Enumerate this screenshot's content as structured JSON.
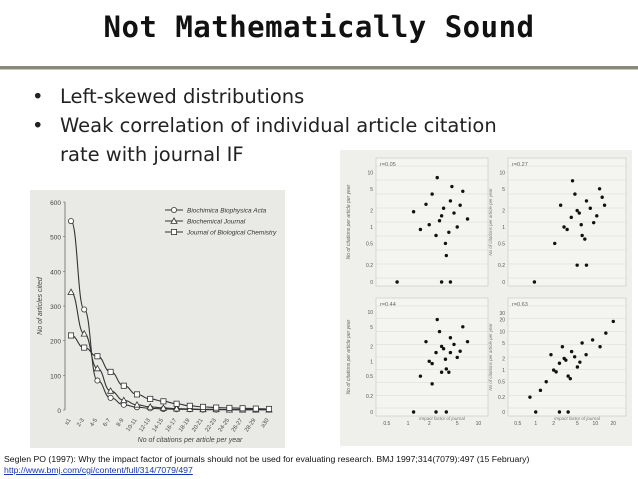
{
  "slide": {
    "title": "Not Mathematically Sound",
    "bullets": [
      "Left-skewed distributions",
      "Weak correlation of individual article citation rate with journal IF"
    ],
    "bullet_lines": [
      "Left-skewed distributions",
      "Weak correlation of individual article citation",
      "rate with journal IF"
    ],
    "citation": "Seglen PO (1997): Why the impact factor of journals should not be used for evaluating research. BMJ 1997;314(7079):497 (15 February)",
    "link": "http://www.bmj.com/cgi/content/full/314/7079/497"
  },
  "chart_data": [
    {
      "type": "line",
      "ylabel": "No of articles cited",
      "xlabel": "No of citations per article per year",
      "categories": [
        "≤1",
        "2-3",
        "4-5",
        "6-7",
        "8-9",
        "10-11",
        "12-13",
        "14-15",
        "16-17",
        "18-19",
        "20-21",
        "22-23",
        "24-25",
        "26-27",
        "28-29",
        "≥30"
      ],
      "yticks": [
        0,
        100,
        200,
        300,
        400,
        500,
        600
      ],
      "ylim": [
        0,
        600
      ],
      "legend_position": "top-right",
      "series": [
        {
          "name": "Biochimica Biophysica Acta",
          "marker": "circle",
          "values": [
            545,
            290,
            85,
            35,
            15,
            8,
            5,
            3,
            2,
            2,
            1,
            1,
            1,
            1,
            1,
            1
          ]
        },
        {
          "name": "Biochemical Journal",
          "marker": "triangle",
          "values": [
            340,
            220,
            120,
            55,
            28,
            15,
            9,
            6,
            4,
            3,
            2,
            2,
            1,
            1,
            1,
            1
          ]
        },
        {
          "name": "Journal of Biological Chemistry",
          "marker": "square",
          "values": [
            215,
            180,
            155,
            110,
            70,
            45,
            32,
            25,
            18,
            12,
            9,
            7,
            6,
            5,
            4,
            3
          ]
        }
      ]
    },
    {
      "type": "scatter",
      "scale": "log",
      "ylabel": "No of citations per article per year",
      "panels": [
        {
          "label": "r=0.05",
          "yticks": [
            "10",
            "5",
            "2",
            "1",
            "0.5",
            "0.2",
            "0"
          ],
          "points": [
            [
              0.7,
              0
            ],
            [
              1.5,
              0.9
            ],
            [
              2,
              1.1
            ],
            [
              2.5,
              0.7
            ],
            [
              3,
              1.6
            ],
            [
              3.5,
              0.3
            ],
            [
              4,
              3
            ],
            [
              5,
              1
            ],
            [
              1.2,
              1.9
            ],
            [
              1.8,
              2.6
            ],
            [
              2.2,
              4
            ],
            [
              2.8,
              1.3
            ],
            [
              3.2,
              2.2
            ],
            [
              3.8,
              0.8
            ],
            [
              4.5,
              1.8
            ],
            [
              5.5,
              2.5
            ],
            [
              6,
              4.5
            ],
            [
              7,
              1.4
            ],
            [
              3,
              0
            ],
            [
              4,
              0
            ],
            [
              2.6,
              8
            ],
            [
              3.4,
              0.5
            ],
            [
              4.2,
              5.5
            ]
          ]
        },
        {
          "label": "r=0.27",
          "yticks": [
            "10",
            "5",
            "2",
            "1",
            "0.5",
            "0.2",
            "0"
          ],
          "points": [
            [
              0.8,
              0
            ],
            [
              1.5,
              0.5
            ],
            [
              2,
              1
            ],
            [
              2.5,
              1.5
            ],
            [
              3,
              2
            ],
            [
              3.5,
              0.7
            ],
            [
              4,
              3
            ],
            [
              5,
              1.2
            ],
            [
              1.8,
              2.5
            ],
            [
              2.2,
              0.9
            ],
            [
              2.8,
              4
            ],
            [
              3.2,
              1.8
            ],
            [
              3.8,
              0.6
            ],
            [
              4.5,
              2.2
            ],
            [
              5.5,
              1.6
            ],
            [
              6,
              5
            ],
            [
              7,
              2.5
            ],
            [
              3,
              0.2
            ],
            [
              4,
              0.2
            ],
            [
              2.6,
              7
            ],
            [
              3.4,
              1.1
            ],
            [
              6.5,
              3.5
            ]
          ]
        },
        {
          "label": "r=0.44",
          "yticks": [
            "10",
            "5",
            "2",
            "1",
            "0.5",
            "0.2",
            "0"
          ],
          "points": [
            [
              1.2,
              0
            ],
            [
              1.5,
              0.5
            ],
            [
              2,
              1
            ],
            [
              2.5,
              1.5
            ],
            [
              3,
              2
            ],
            [
              3.5,
              0.7
            ],
            [
              4,
              3
            ],
            [
              5,
              1.2
            ],
            [
              1.8,
              2.5
            ],
            [
              2.2,
              0.9
            ],
            [
              2.8,
              4
            ],
            [
              3.2,
              1.8
            ],
            [
              3.8,
              0.6
            ],
            [
              4.5,
              2.2
            ],
            [
              5.5,
              1.6
            ],
            [
              6,
              5
            ],
            [
              7,
              2.5
            ],
            [
              2.5,
              0
            ],
            [
              3.5,
              0
            ],
            [
              2.6,
              7
            ],
            [
              3.4,
              1.1
            ],
            [
              2.2,
              0.35
            ],
            [
              3,
              0.6
            ],
            [
              4,
              1.5
            ]
          ]
        },
        {
          "label": "r=0.63",
          "yticks": [
            "30",
            "20",
            "10",
            "5",
            "2",
            "1",
            "0.5",
            "0.2",
            "0"
          ],
          "xticks": [
            "0.5",
            "1",
            "2",
            "5",
            "10",
            "20"
          ],
          "points": [
            [
              1,
              0
            ],
            [
              1.5,
              0.5
            ],
            [
              2,
              1
            ],
            [
              2.5,
              1.5
            ],
            [
              3,
              2
            ],
            [
              3.5,
              0.7
            ],
            [
              4,
              3
            ],
            [
              5,
              1.2
            ],
            [
              1.8,
              2.5
            ],
            [
              2.2,
              0.9
            ],
            [
              2.8,
              4
            ],
            [
              3.2,
              1.8
            ],
            [
              3.8,
              0.6
            ],
            [
              4.5,
              2.2
            ],
            [
              5.5,
              1.6
            ],
            [
              6,
              5
            ],
            [
              7,
              2.5
            ],
            [
              2.5,
              0
            ],
            [
              3.5,
              0
            ],
            [
              9,
              6
            ],
            [
              12,
              4
            ],
            [
              20,
              18
            ],
            [
              15,
              9
            ],
            [
              1.2,
              0.3
            ],
            [
              0.8,
              0.2
            ]
          ]
        }
      ],
      "xlabel": "Impact factor of journal",
      "xticks": [
        "0.5",
        "1",
        "2",
        "5",
        "10"
      ]
    }
  ]
}
